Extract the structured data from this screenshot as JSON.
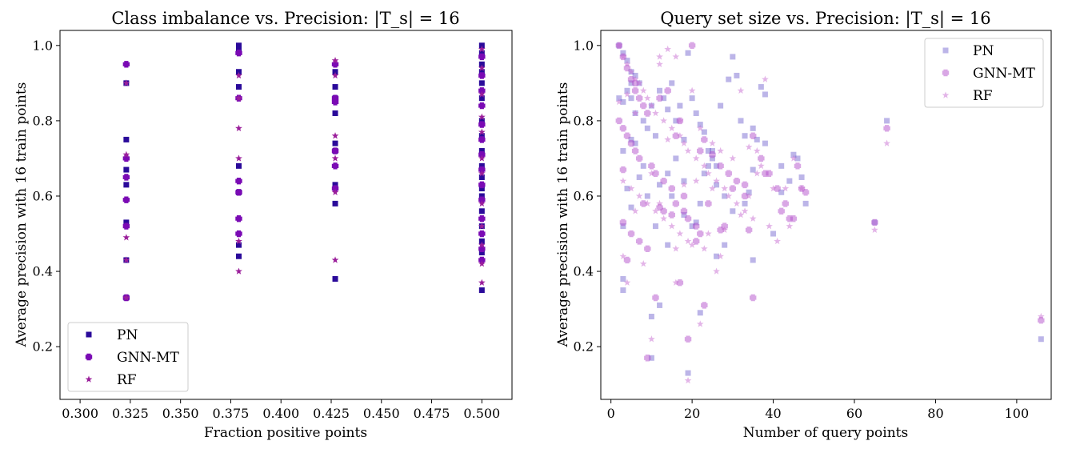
{
  "chart_data": [
    {
      "type": "scatter",
      "title": "Class imbalance vs. Precision: |T_s| = 16",
      "xlabel": "Fraction positive points",
      "ylabel": "Average precision with 16 train points",
      "xlim": [
        0.29,
        0.515
      ],
      "ylim": [
        0.06,
        1.04
      ],
      "xticks": [
        0.3,
        0.325,
        0.35,
        0.375,
        0.4,
        0.425,
        0.45,
        0.475,
        0.5
      ],
      "xtick_labels": [
        "0.300",
        "0.325",
        "0.350",
        "0.375",
        "0.400",
        "0.425",
        "0.450",
        "0.475",
        "0.500"
      ],
      "yticks": [
        0.2,
        0.4,
        0.6,
        0.8,
        1.0
      ],
      "ytick_labels": [
        "0.2",
        "0.4",
        "0.6",
        "0.8",
        "1.0"
      ],
      "grid": false,
      "legend_position": "bottom-left",
      "series": [
        {
          "name": "PN",
          "marker": "square",
          "color": "#2a0a9a",
          "alpha": 1.0,
          "x": [
            0.323,
            0.323,
            0.323,
            0.323,
            0.323,
            0.323,
            0.323,
            0.379,
            0.379,
            0.379,
            0.379,
            0.379,
            0.379,
            0.379,
            0.379,
            0.427,
            0.427,
            0.427,
            0.427,
            0.427,
            0.427,
            0.427,
            0.427,
            0.427,
            0.5,
            0.5,
            0.5,
            0.5,
            0.5,
            0.5,
            0.5,
            0.5,
            0.5,
            0.5,
            0.5,
            0.5,
            0.5,
            0.5,
            0.5,
            0.5,
            0.5,
            0.5
          ],
          "y": [
            0.9,
            0.75,
            0.67,
            0.63,
            0.53,
            0.43,
            0.33,
            1.0,
            0.93,
            0.89,
            0.68,
            0.61,
            0.47,
            0.44,
            0.99,
            0.93,
            0.89,
            0.82,
            0.74,
            0.72,
            0.63,
            0.58,
            0.38,
            0.86,
            1.0,
            0.98,
            0.95,
            0.93,
            0.9,
            0.86,
            0.8,
            0.76,
            0.72,
            0.68,
            0.65,
            0.62,
            0.6,
            0.56,
            0.52,
            0.48,
            0.45,
            0.35
          ]
        },
        {
          "name": "GNN-MT",
          "marker": "plus",
          "color": "#7a0ab4",
          "alpha": 1.0,
          "x": [
            0.323,
            0.323,
            0.323,
            0.323,
            0.323,
            0.323,
            0.379,
            0.379,
            0.379,
            0.379,
            0.379,
            0.379,
            0.427,
            0.427,
            0.427,
            0.427,
            0.427,
            0.427,
            0.5,
            0.5,
            0.5,
            0.5,
            0.5,
            0.5,
            0.5,
            0.5,
            0.5,
            0.5,
            0.5,
            0.5,
            0.5,
            0.5
          ],
          "y": [
            0.95,
            0.7,
            0.65,
            0.59,
            0.52,
            0.33,
            0.98,
            0.86,
            0.64,
            0.61,
            0.54,
            0.5,
            0.95,
            0.85,
            0.72,
            0.68,
            0.62,
            0.86,
            0.97,
            0.92,
            0.88,
            0.84,
            0.79,
            0.75,
            0.71,
            0.67,
            0.63,
            0.59,
            0.54,
            0.5,
            0.46,
            0.43
          ]
        },
        {
          "name": "RF",
          "marker": "star",
          "color": "#9b1f9b",
          "alpha": 1.0,
          "x": [
            0.323,
            0.323,
            0.323,
            0.323,
            0.323,
            0.379,
            0.379,
            0.379,
            0.379,
            0.379,
            0.379,
            0.427,
            0.427,
            0.427,
            0.427,
            0.427,
            0.427,
            0.5,
            0.5,
            0.5,
            0.5,
            0.5,
            0.5,
            0.5,
            0.5,
            0.5,
            0.5,
            0.5,
            0.5
          ],
          "y": [
            0.9,
            0.71,
            0.49,
            0.43,
            0.33,
            0.92,
            0.78,
            0.7,
            0.48,
            0.4,
            0.86,
            0.96,
            0.92,
            0.76,
            0.61,
            0.43,
            0.7,
            0.99,
            0.94,
            0.87,
            0.81,
            0.77,
            0.7,
            0.66,
            0.58,
            0.52,
            0.47,
            0.42,
            0.37
          ]
        }
      ]
    },
    {
      "type": "scatter",
      "title": "Query set size vs. Precision: |T_s| = 16",
      "xlabel": "Number of query points",
      "ylabel": "Average precision with 16 train points",
      "xlim": [
        -2.5,
        108.5
      ],
      "ylim": [
        0.06,
        1.04
      ],
      "xticks": [
        0,
        20,
        40,
        60,
        80,
        100
      ],
      "xtick_labels": [
        "0",
        "20",
        "40",
        "60",
        "80",
        "100"
      ],
      "yticks": [
        0.2,
        0.4,
        0.6,
        0.8,
        1.0
      ],
      "ytick_labels": [
        "0.2",
        "0.4",
        "0.6",
        "0.8",
        "1.0"
      ],
      "grid": false,
      "legend_position": "top-right",
      "series": [
        {
          "name": "PN",
          "marker": "square",
          "color": "#6a5acd",
          "alpha": 0.45,
          "x": [
            2,
            3,
            4,
            5,
            6,
            7,
            3,
            4,
            5,
            6,
            8,
            9,
            10,
            11,
            12,
            13,
            14,
            15,
            16,
            17,
            18,
            19,
            20,
            21,
            22,
            23,
            24,
            25,
            26,
            27,
            29,
            30,
            31,
            32,
            33,
            34,
            35,
            36,
            37,
            38,
            3,
            5,
            7,
            9,
            11,
            14,
            16,
            18,
            20,
            22,
            24,
            26,
            28,
            30,
            33,
            35,
            38,
            40,
            42,
            44,
            46,
            48,
            3,
            5,
            10,
            12,
            14,
            18,
            22,
            26,
            28,
            35,
            42,
            45,
            47,
            65,
            68,
            106,
            19,
            10,
            3,
            4,
            5,
            6,
            8,
            12,
            15,
            21,
            23,
            25,
            3,
            2
          ],
          "y": [
            1.0,
            0.98,
            0.96,
            0.93,
            0.92,
            0.9,
            0.85,
            0.88,
            0.86,
            0.82,
            0.8,
            0.78,
            0.84,
            0.76,
            0.88,
            0.86,
            0.83,
            0.9,
            0.8,
            0.84,
            0.75,
            0.98,
            0.86,
            0.82,
            0.79,
            0.77,
            0.72,
            0.7,
            0.68,
            0.84,
            0.91,
            0.97,
            0.92,
            0.8,
            0.76,
            0.61,
            0.78,
            0.75,
            0.89,
            0.87,
            0.72,
            0.75,
            0.65,
            0.6,
            0.52,
            0.66,
            0.7,
            0.55,
            0.52,
            0.58,
            0.68,
            0.44,
            0.47,
            0.56,
            0.58,
            0.43,
            0.74,
            0.5,
            0.61,
            0.64,
            0.7,
            0.58,
            0.38,
            0.57,
            0.17,
            0.31,
            0.47,
            0.64,
            0.29,
            0.63,
            0.6,
            0.67,
            0.68,
            0.71,
            0.65,
            0.53,
            0.8,
            0.22,
            0.13,
            0.28,
            0.35,
            0.62,
            0.9,
            0.74,
            0.68,
            0.63,
            0.6,
            0.53,
            0.66,
            0.72,
            0.52,
            0.86
          ]
        },
        {
          "name": "GNN-MT",
          "marker": "plus",
          "color": "#b44fcc",
          "alpha": 0.5,
          "x": [
            2,
            3,
            4,
            5,
            6,
            7,
            8,
            2,
            3,
            4,
            5,
            6,
            7,
            9,
            10,
            11,
            12,
            13,
            14,
            15,
            16,
            17,
            18,
            19,
            20,
            21,
            22,
            23,
            25,
            27,
            29,
            31,
            33,
            35,
            37,
            39,
            41,
            43,
            45,
            47,
            3,
            5,
            7,
            9,
            12,
            15,
            18,
            21,
            24,
            27,
            30,
            34,
            38,
            42,
            46,
            4,
            8,
            13,
            19,
            23,
            35,
            44,
            65,
            68,
            106,
            9,
            17,
            3,
            6,
            11,
            16,
            22,
            28,
            33,
            48
          ],
          "y": [
            1.0,
            0.97,
            0.94,
            0.91,
            0.88,
            0.86,
            0.84,
            0.8,
            0.78,
            0.76,
            0.74,
            0.72,
            0.7,
            0.82,
            0.68,
            0.66,
            0.86,
            0.64,
            0.88,
            0.62,
            0.58,
            0.8,
            0.56,
            0.54,
            1.0,
            0.52,
            0.5,
            0.75,
            0.71,
            0.68,
            0.66,
            0.64,
            0.6,
            0.76,
            0.7,
            0.66,
            0.62,
            0.58,
            0.54,
            0.62,
            0.53,
            0.5,
            0.48,
            0.46,
            0.57,
            0.55,
            0.6,
            0.48,
            0.58,
            0.51,
            0.62,
            0.51,
            0.66,
            0.56,
            0.68,
            0.43,
            0.58,
            0.56,
            0.22,
            0.31,
            0.33,
            0.54,
            0.53,
            0.78,
            0.27,
            0.17,
            0.37,
            0.67,
            0.9,
            0.33,
            0.76,
            0.72,
            0.52,
            0.63,
            0.61
          ]
        },
        {
          "name": "RF",
          "marker": "star",
          "color": "#c86bd1",
          "alpha": 0.5,
          "x": [
            2,
            3,
            4,
            5,
            6,
            7,
            8,
            9,
            10,
            11,
            12,
            13,
            14,
            15,
            16,
            17,
            18,
            19,
            20,
            21,
            22,
            23,
            24,
            25,
            26,
            27,
            28,
            30,
            32,
            34,
            36,
            38,
            40,
            3,
            5,
            7,
            9,
            11,
            13,
            15,
            17,
            19,
            21,
            23,
            25,
            27,
            29,
            31,
            33,
            35,
            37,
            39,
            41,
            43,
            45,
            47,
            4,
            8,
            12,
            16,
            20,
            24,
            28,
            32,
            36,
            3,
            6,
            10,
            14,
            18,
            22,
            26,
            34,
            44,
            65,
            68,
            106,
            19,
            10,
            16,
            2,
            4,
            6,
            12,
            17
          ],
          "y": [
            1.0,
            0.97,
            0.95,
            0.93,
            0.91,
            0.9,
            0.88,
            0.86,
            0.84,
            0.82,
            0.97,
            0.8,
            0.99,
            0.78,
            0.97,
            0.76,
            0.74,
            0.72,
            0.88,
            0.7,
            0.78,
            0.68,
            0.66,
            0.74,
            0.64,
            0.72,
            0.62,
            0.7,
            0.88,
            0.6,
            0.72,
            0.91,
            0.62,
            0.64,
            0.62,
            0.6,
            0.58,
            0.56,
            0.54,
            0.52,
            0.5,
            0.48,
            0.64,
            0.46,
            0.62,
            0.44,
            0.6,
            0.58,
            0.56,
            0.54,
            0.68,
            0.52,
            0.48,
            0.62,
            0.7,
            0.62,
            0.37,
            0.42,
            0.58,
            0.46,
            0.47,
            0.5,
            0.51,
            0.55,
            0.66,
            0.44,
            0.56,
            0.22,
            0.75,
            0.63,
            0.26,
            0.4,
            0.73,
            0.52,
            0.51,
            0.74,
            0.28,
            0.11,
            0.66,
            0.37,
            0.85,
            0.87,
            0.82,
            0.95,
            0.8
          ]
        }
      ]
    }
  ]
}
